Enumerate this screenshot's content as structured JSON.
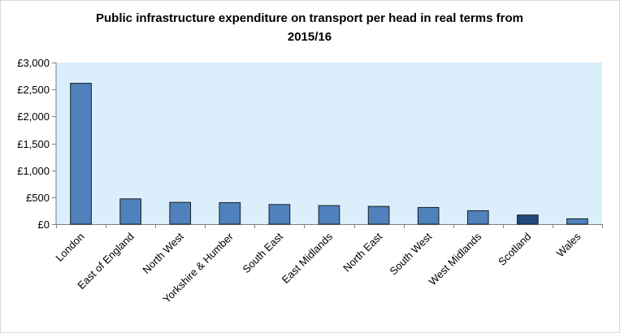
{
  "chart_data": {
    "type": "bar",
    "title_lines": [
      "Public infrastructure expenditure on transport per head in real terms from",
      "2015/16"
    ],
    "categories": [
      "London",
      "East of England",
      "North West",
      "Yorkshire & Humber",
      "South East",
      "East Midlands",
      "North East",
      "South West",
      "West Midlands",
      "Scotland",
      "Wales"
    ],
    "values": [
      2615,
      470,
      405,
      400,
      365,
      345,
      330,
      310,
      250,
      170,
      100
    ],
    "ylim": [
      0,
      3000
    ],
    "yticks": [
      0,
      500,
      1000,
      1500,
      2000,
      2500,
      3000
    ],
    "ytick_labels": [
      "£0",
      "£500",
      "£1,000",
      "£1,500",
      "£2,000",
      "£2,500",
      "£3,000"
    ],
    "xlabel": "",
    "ylabel": "",
    "grid": false,
    "colors": {
      "bar": "#4f81bd",
      "bar_highlight": "#1f497d",
      "bar_border": "#1f1f1f",
      "plot_background": "#dbeefb",
      "axis": "#808080"
    },
    "highlight_category": "Scotland"
  }
}
